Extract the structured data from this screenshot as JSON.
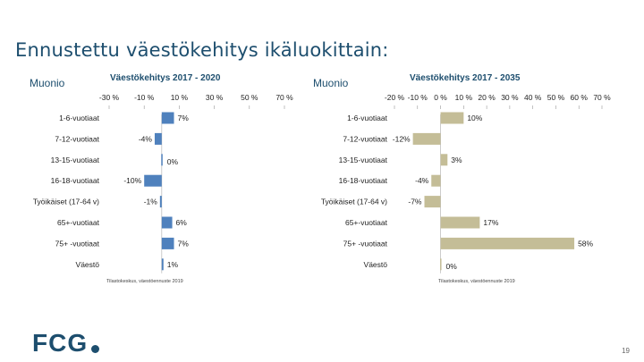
{
  "slide": {
    "title": "Ennustettu väestökehitys ikäluokittain:",
    "logo_text": "FCG",
    "page_number": "19"
  },
  "chart_data": [
    {
      "type": "bar",
      "orientation": "horizontal",
      "municipality": "Muonio",
      "title": "Väestökehitys 2017 - 2020",
      "categories": [
        "1-6-vuotiaat",
        "7-12-vuotiaat",
        "13-15-vuotiaat",
        "16-18-vuotiaat",
        "Työikäiset (17-64 v)",
        "65+-vuotiaat",
        "75+ -vuotiaat",
        "Väestö"
      ],
      "values": [
        7,
        -4,
        0,
        -10,
        -1,
        6,
        7,
        1
      ],
      "value_labels": [
        "7%",
        "-4%",
        "0%",
        "-10%",
        "-1%",
        "6%",
        "7%",
        "1%"
      ],
      "x_ticks": [
        "-30 %",
        "-10 %",
        "10 %",
        "30 %",
        "50 %",
        "70 %"
      ],
      "xlim": [
        -30,
        70
      ],
      "bar_color": "#4f81bd",
      "source": "Tilastokeskus, väestöennuste 2019"
    },
    {
      "type": "bar",
      "orientation": "horizontal",
      "municipality": "Muonio",
      "title": "Väestökehitys 2017 - 2035",
      "categories": [
        "1-6-vuotiaat",
        "7-12-vuotiaat",
        "13-15-vuotiaat",
        "16-18-vuotiaat",
        "Työikäiset (17-64 v)",
        "65+-vuotiaat",
        "75+ -vuotiaat",
        "Väestö"
      ],
      "values": [
        10,
        -12,
        3,
        -4,
        -7,
        17,
        58,
        0
      ],
      "value_labels": [
        "10%",
        "-12%",
        "3%",
        "-4%",
        "-7%",
        "17%",
        "58%",
        "0%"
      ],
      "x_ticks": [
        "-20 %",
        "-10 %",
        "0 %",
        "10 %",
        "20 %",
        "30 %",
        "40 %",
        "50 %",
        "60 %",
        "70 %"
      ],
      "xlim": [
        -20,
        70
      ],
      "bar_color": "#c4bd97",
      "source": "Tilastokeskus, väestöennuste 2019"
    }
  ]
}
